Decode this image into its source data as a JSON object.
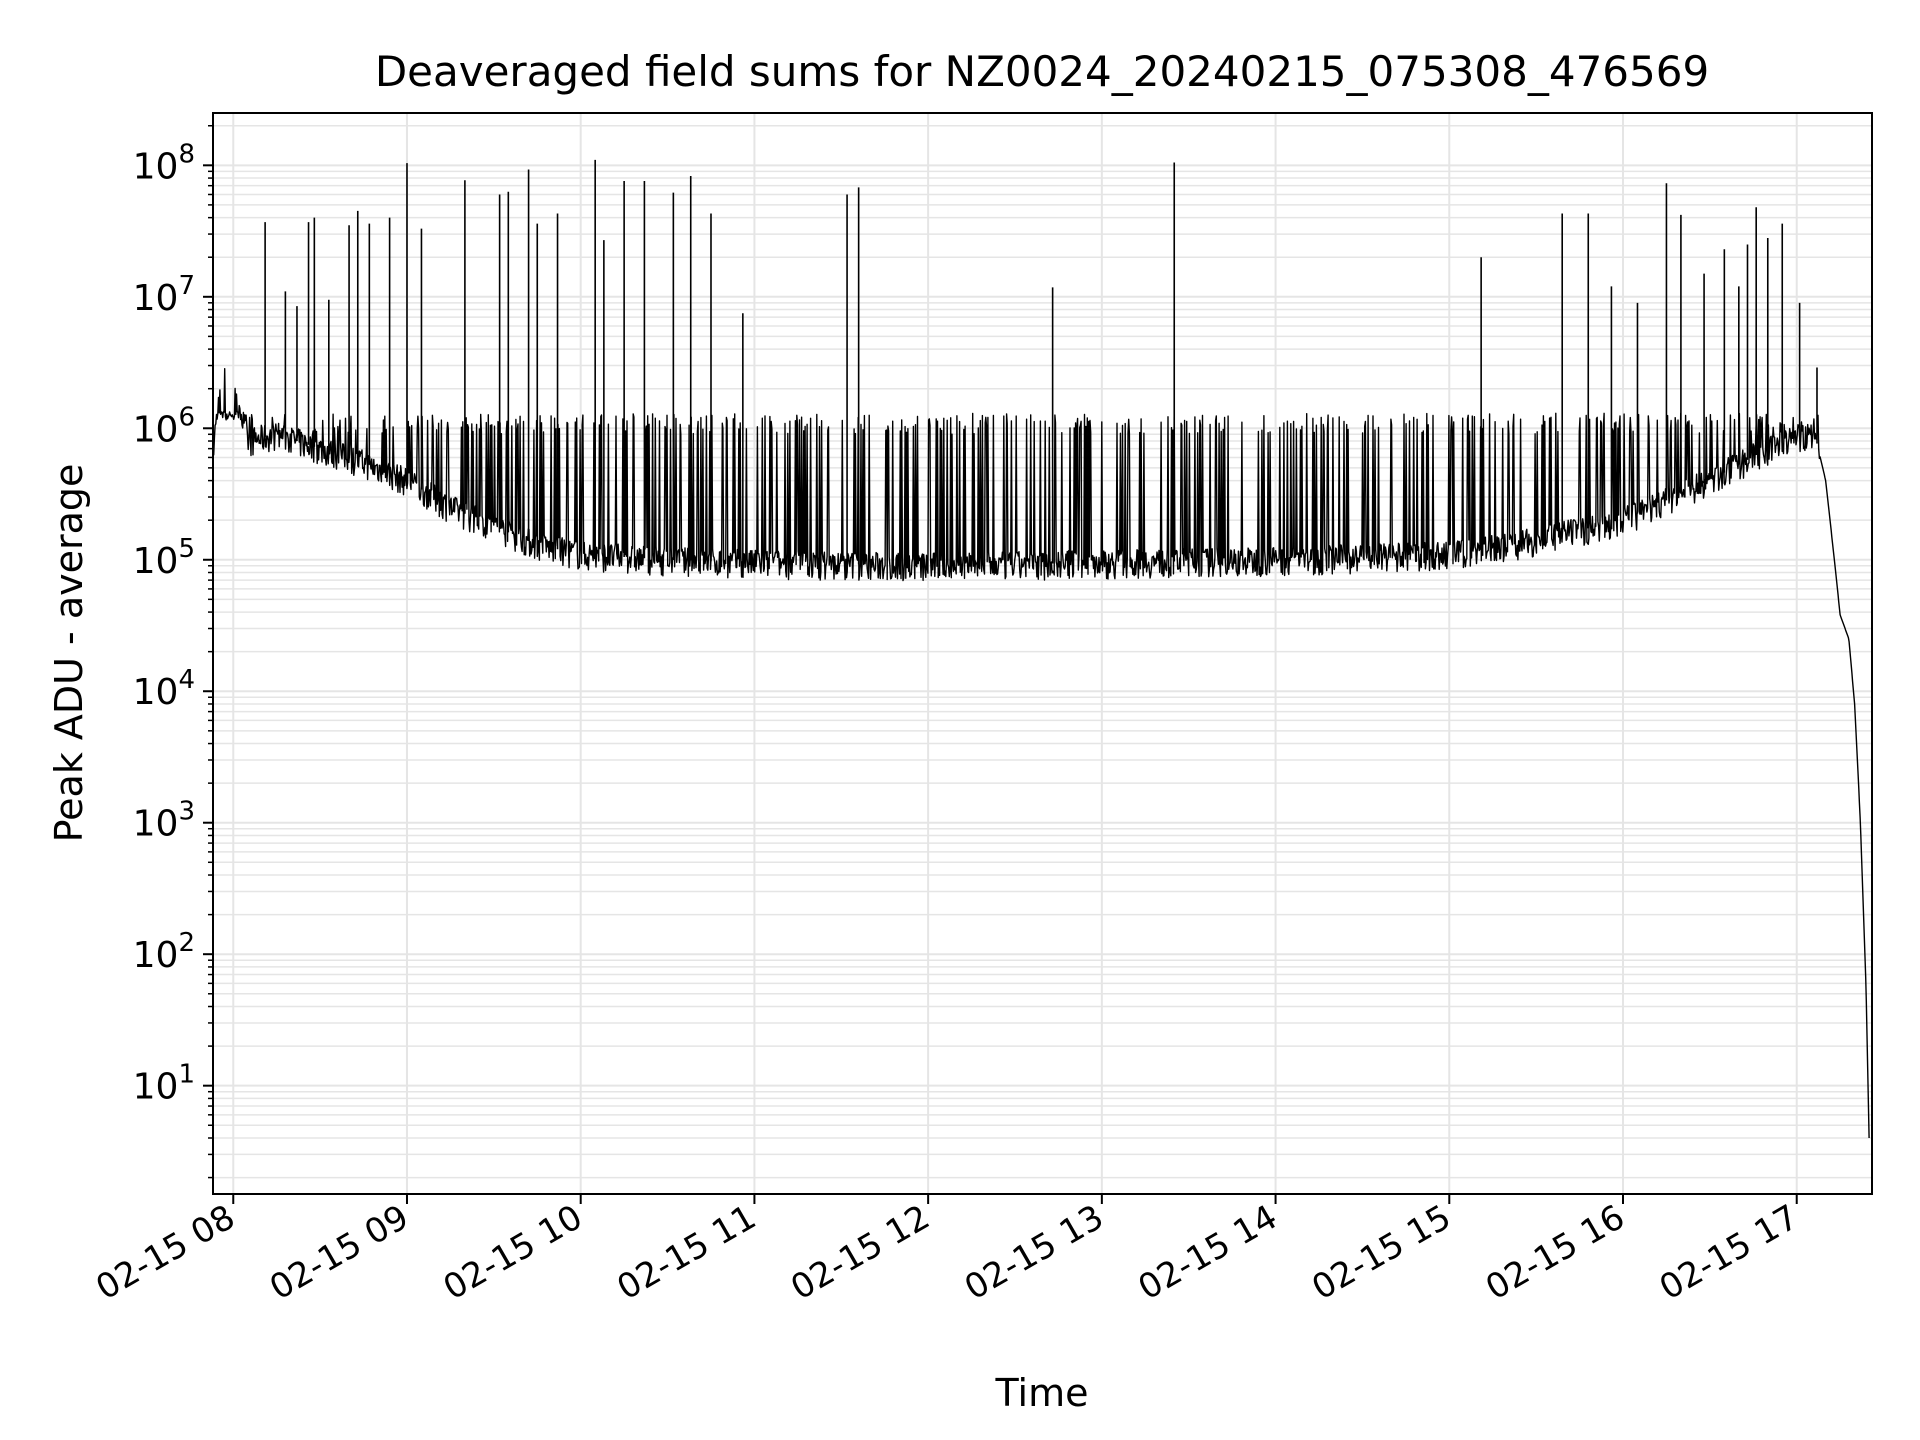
{
  "chart_data": {
    "type": "line",
    "title": "Deaveraged field sums for NZ0024_20240215_075308_476569",
    "xlabel": "Time",
    "ylabel": "Peak ADU - average",
    "yscale": "log",
    "grid": true,
    "legend": "none",
    "line_color": "#000000",
    "grid_color": "#e5e5e5",
    "xlim": [
      "2024-02-15 07:53",
      "2024-02-15 17:26"
    ],
    "ylim": [
      1.5,
      250000000
    ],
    "x_ticks": [
      {
        "t": "2024-02-15 08:00",
        "label": "02-15 08"
      },
      {
        "t": "2024-02-15 09:00",
        "label": "02-15 09"
      },
      {
        "t": "2024-02-15 10:00",
        "label": "02-15 10"
      },
      {
        "t": "2024-02-15 11:00",
        "label": "02-15 11"
      },
      {
        "t": "2024-02-15 12:00",
        "label": "02-15 12"
      },
      {
        "t": "2024-02-15 13:00",
        "label": "02-15 13"
      },
      {
        "t": "2024-02-15 14:00",
        "label": "02-15 14"
      },
      {
        "t": "2024-02-15 15:00",
        "label": "02-15 15"
      },
      {
        "t": "2024-02-15 16:00",
        "label": "02-15 16"
      },
      {
        "t": "2024-02-15 17:00",
        "label": "02-15 17"
      }
    ],
    "y_ticks": [
      {
        "value": 10,
        "base": "10",
        "exp": "1"
      },
      {
        "value": 100,
        "base": "10",
        "exp": "2"
      },
      {
        "value": 1000,
        "base": "10",
        "exp": "3"
      },
      {
        "value": 10000,
        "base": "10",
        "exp": "4"
      },
      {
        "value": 100000,
        "base": "10",
        "exp": "5"
      },
      {
        "value": 1000000,
        "base": "10",
        "exp": "6"
      },
      {
        "value": 10000000,
        "base": "10",
        "exp": "7"
      },
      {
        "value": 100000000,
        "base": "10",
        "exp": "8"
      }
    ],
    "series": [
      {
        "points": [
          [
            "2024-02-15 07:53",
            650000
          ],
          [
            "2024-02-15 07:55",
            1800000
          ],
          [
            "2024-02-15 07:58",
            3500000
          ],
          [
            "2024-02-15 08:05",
            800000
          ],
          [
            "2024-02-15 08:15",
            900000
          ],
          [
            "2024-02-15 08:30",
            700000
          ],
          [
            "2024-02-15 08:45",
            550000
          ],
          [
            "2024-02-15 09:00",
            400000
          ],
          [
            "2024-02-15 09:15",
            250000
          ],
          [
            "2024-02-15 09:30",
            180000
          ],
          [
            "2024-02-15 09:45",
            130000
          ],
          [
            "2024-02-15 10:00",
            110000
          ],
          [
            "2024-02-15 10:30",
            100000
          ],
          [
            "2024-02-15 11:00",
            95000
          ],
          [
            "2024-02-15 12:00",
            90000
          ],
          [
            "2024-02-15 13:00",
            95000
          ],
          [
            "2024-02-15 14:00",
            100000
          ],
          [
            "2024-02-15 15:00",
            110000
          ],
          [
            "2024-02-15 15:30",
            140000
          ],
          [
            "2024-02-15 16:00",
            200000
          ],
          [
            "2024-02-15 16:30",
            400000
          ],
          [
            "2024-02-15 16:50",
            700000
          ],
          [
            "2024-02-15 17:00",
            850000
          ],
          [
            "2024-02-15 17:06",
            950000
          ],
          [
            "2024-02-15 17:10",
            400000
          ],
          [
            "2024-02-15 17:13",
            100000
          ],
          [
            "2024-02-15 17:15",
            38000
          ],
          [
            "2024-02-15 17:18",
            25000
          ],
          [
            "2024-02-15 17:20",
            8000
          ],
          [
            "2024-02-15 17:22",
            1000
          ],
          [
            "2024-02-15 17:24",
            50
          ],
          [
            "2024-02-15 17:25",
            4
          ]
        ]
      }
    ],
    "spikes": [
      [
        "2024-02-15 08:11",
        37000000
      ],
      [
        "2024-02-15 08:18",
        11000000
      ],
      [
        "2024-02-15 08:22",
        8500000
      ],
      [
        "2024-02-15 08:26",
        37000000
      ],
      [
        "2024-02-15 08:28",
        40000000
      ],
      [
        "2024-02-15 08:33",
        9500000
      ],
      [
        "2024-02-15 08:40",
        35000000
      ],
      [
        "2024-02-15 08:43",
        45000000
      ],
      [
        "2024-02-15 08:47",
        36000000
      ],
      [
        "2024-02-15 08:54",
        40000000
      ],
      [
        "2024-02-15 09:00",
        104000000
      ],
      [
        "2024-02-15 09:05",
        33000000
      ],
      [
        "2024-02-15 09:20",
        77000000
      ],
      [
        "2024-02-15 09:32",
        60000000
      ],
      [
        "2024-02-15 09:35",
        63000000
      ],
      [
        "2024-02-15 09:42",
        93000000
      ],
      [
        "2024-02-15 09:45",
        36000000
      ],
      [
        "2024-02-15 09:52",
        43000000
      ],
      [
        "2024-02-15 10:05",
        110000000
      ],
      [
        "2024-02-15 10:08",
        27000000
      ],
      [
        "2024-02-15 10:15",
        76000000
      ],
      [
        "2024-02-15 10:22",
        76000000
      ],
      [
        "2024-02-15 10:32",
        62000000
      ],
      [
        "2024-02-15 10:38",
        83000000
      ],
      [
        "2024-02-15 10:45",
        43000000
      ],
      [
        "2024-02-15 10:56",
        7500000
      ],
      [
        "2024-02-15 11:32",
        60000000
      ],
      [
        "2024-02-15 11:36",
        68000000
      ],
      [
        "2024-02-15 12:43",
        11800000
      ],
      [
        "2024-02-15 13:25",
        105000000
      ],
      [
        "2024-02-15 15:11",
        20000000
      ],
      [
        "2024-02-15 15:39",
        43000000
      ],
      [
        "2024-02-15 15:48",
        43000000
      ],
      [
        "2024-02-15 15:56",
        12000000
      ],
      [
        "2024-02-15 16:05",
        9000000
      ],
      [
        "2024-02-15 16:15",
        73000000
      ],
      [
        "2024-02-15 16:20",
        42000000
      ],
      [
        "2024-02-15 16:28",
        15000000
      ],
      [
        "2024-02-15 16:35",
        23000000
      ],
      [
        "2024-02-15 16:40",
        12000000
      ],
      [
        "2024-02-15 16:43",
        25000000
      ],
      [
        "2024-02-15 16:46",
        48000000
      ],
      [
        "2024-02-15 16:50",
        28000000
      ],
      [
        "2024-02-15 16:55",
        36000000
      ],
      [
        "2024-02-15 17:01",
        9000000
      ],
      [
        "2024-02-15 17:07",
        2900000
      ]
    ]
  }
}
